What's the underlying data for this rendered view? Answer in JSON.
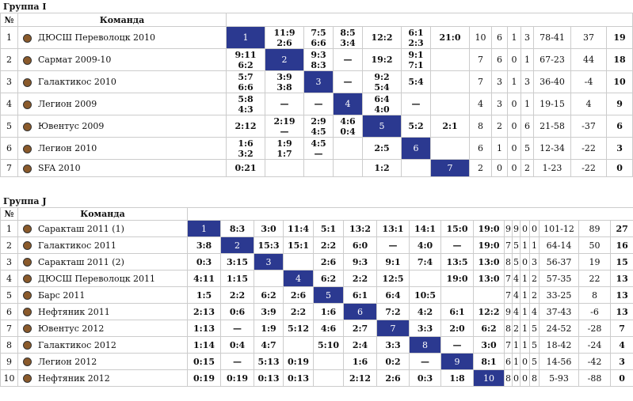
{
  "groups": [
    {
      "title": "Группа I",
      "header": [
        "№",
        "Команда"
      ],
      "rows": [
        {
          "n": 1,
          "team": "ДЮСШ Переволоцк 2010",
          "cells": [
            "1",
            [
              "11:9",
              "2:6"
            ],
            [
              "7:5",
              "6:6"
            ],
            [
              "8:5",
              "3:4"
            ],
            "12:2",
            [
              "6:1",
              "2:3"
            ],
            "21:0"
          ],
          "stats": [
            10,
            6,
            1,
            3,
            "78-41",
            37,
            19
          ]
        },
        {
          "n": 2,
          "team": "Сармат 2009-10",
          "cells": [
            [
              "9:11",
              "6:2"
            ],
            "2",
            [
              "9:3",
              "8:3"
            ],
            "—",
            "19:2",
            [
              "9:1",
              "7:1"
            ],
            ""
          ],
          "stats": [
            7,
            6,
            0,
            1,
            "67-23",
            44,
            18
          ]
        },
        {
          "n": 3,
          "team": "Галактикос 2010",
          "cells": [
            [
              "5:7",
              "6:6"
            ],
            [
              "3:9",
              "3:8"
            ],
            "3",
            "—",
            [
              "9:2",
              "5:4"
            ],
            "5:4",
            ""
          ],
          "stats": [
            7,
            3,
            1,
            3,
            "36-40",
            -4,
            10
          ]
        },
        {
          "n": 4,
          "team": "Легион 2009",
          "cells": [
            [
              "5:8",
              "4:3"
            ],
            "—",
            "—",
            "4",
            [
              "6:4",
              "4:0"
            ],
            "—",
            ""
          ],
          "stats": [
            4,
            3,
            0,
            1,
            "19-15",
            4,
            9
          ]
        },
        {
          "n": 5,
          "team": "Ювентус 2009",
          "cells": [
            "2:12",
            [
              "2:19",
              "—"
            ],
            [
              "2:9",
              "4:5"
            ],
            [
              "4:6",
              "0:4"
            ],
            "5",
            "5:2",
            "2:1"
          ],
          "stats": [
            8,
            2,
            0,
            6,
            "21-58",
            -37,
            6
          ]
        },
        {
          "n": 6,
          "team": "Легион 2010",
          "cells": [
            [
              "1:6",
              "3:2"
            ],
            [
              "1:9",
              "1:7"
            ],
            [
              "4:5",
              "—"
            ],
            "",
            "2:5",
            "6",
            ""
          ],
          "stats": [
            6,
            1,
            0,
            5,
            "12-34",
            -22,
            3
          ]
        },
        {
          "n": 7,
          "team": "SFA 2010",
          "cells": [
            "0:21",
            "",
            "",
            "",
            "1:2",
            "",
            "7"
          ],
          "stats": [
            2,
            0,
            0,
            2,
            "1-23",
            -22,
            0
          ]
        }
      ]
    },
    {
      "title": "Группа J",
      "header": [
        "№",
        "Команда"
      ],
      "rows": [
        {
          "n": 1,
          "team": "Саракташ 2011 (1)",
          "cells": [
            "1",
            "8:3",
            "3:0",
            "11:4",
            "5:1",
            "13:2",
            "13:1",
            "14:1",
            "15:0",
            "19:0"
          ],
          "stats": [
            9,
            9,
            0,
            0,
            "101-12",
            89,
            27
          ]
        },
        {
          "n": 2,
          "team": "Галактикос 2011",
          "cells": [
            "3:8",
            "2",
            "15:3",
            "15:1",
            "2:2",
            "6:0",
            "—",
            "4:0",
            "—",
            "19:0"
          ],
          "stats": [
            7,
            5,
            1,
            1,
            "64-14",
            50,
            16
          ]
        },
        {
          "n": 3,
          "team": "Саракташ 2011 (2)",
          "cells": [
            "0:3",
            "3:15",
            "3",
            "",
            "2:6",
            "9:3",
            "9:1",
            "7:4",
            "13:5",
            "13:0"
          ],
          "stats": [
            8,
            5,
            0,
            3,
            "56-37",
            19,
            15
          ]
        },
        {
          "n": 4,
          "team": "ДЮСШ Переволоцк 2011",
          "cells": [
            "4:11",
            "1:15",
            "",
            "4",
            "6:2",
            "2:2",
            "12:5",
            "",
            "19:0",
            "13:0"
          ],
          "stats": [
            7,
            4,
            1,
            2,
            "57-35",
            22,
            13
          ]
        },
        {
          "n": 5,
          "team": "Барс 2011",
          "cells": [
            "1:5",
            "2:2",
            "6:2",
            "2:6",
            "5",
            "6:1",
            "6:4",
            "10:5",
            "",
            ""
          ],
          "stats": [
            7,
            4,
            1,
            2,
            "33-25",
            8,
            13
          ]
        },
        {
          "n": 6,
          "team": "Нефтяник 2011",
          "cells": [
            "2:13",
            "0:6",
            "3:9",
            "2:2",
            "1:6",
            "6",
            "7:2",
            "4:2",
            "6:1",
            "12:2"
          ],
          "stats": [
            9,
            4,
            1,
            4,
            "37-43",
            -6,
            13
          ]
        },
        {
          "n": 7,
          "team": "Ювентус 2012",
          "cells": [
            "1:13",
            "—",
            "1:9",
            "5:12",
            "4:6",
            "2:7",
            "7",
            "3:3",
            "2:0",
            "6:2"
          ],
          "stats": [
            8,
            2,
            1,
            5,
            "24-52",
            -28,
            7
          ]
        },
        {
          "n": 8,
          "team": "Галактикос 2012",
          "cells": [
            "1:14",
            "0:4",
            "4:7",
            "",
            "5:10",
            "2:4",
            "3:3",
            "8",
            "—",
            "3:0"
          ],
          "stats": [
            7,
            1,
            1,
            5,
            "18-42",
            -24,
            4
          ]
        },
        {
          "n": 9,
          "team": "Легион 2012",
          "cells": [
            "0:15",
            "—",
            "5:13",
            "0:19",
            "",
            "1:6",
            "0:2",
            "—",
            "9",
            "8:1"
          ],
          "stats": [
            6,
            1,
            0,
            5,
            "14-56",
            -42,
            3
          ]
        },
        {
          "n": 10,
          "team": "Нефтяник 2012",
          "cells": [
            "0:19",
            "0:19",
            "0:13",
            "0:13",
            "",
            "2:12",
            "2:6",
            "0:3",
            "1:8",
            "10"
          ],
          "stats": [
            8,
            0,
            0,
            8,
            "5-93",
            -88,
            0
          ]
        }
      ]
    }
  ]
}
